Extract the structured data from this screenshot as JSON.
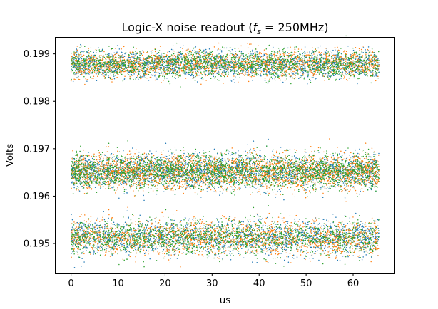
{
  "chart_data": {
    "type": "scatter",
    "title_main": "Logic-X noise readout (",
    "title_var": "f",
    "title_sub": "s",
    "title_rest": " = 250MHz)",
    "xlabel": "us",
    "ylabel": "Volts",
    "xlim": [
      -3.28,
      68.8
    ],
    "ylim": [
      0.19437,
      0.19934
    ],
    "xticks": [
      0,
      10,
      20,
      30,
      40,
      50,
      60
    ],
    "yticks": [
      0.195,
      0.196,
      0.197,
      0.198,
      0.199
    ],
    "ytick_labels": [
      "0.195",
      "0.196",
      "0.197",
      "0.198",
      "0.199"
    ],
    "grid": false,
    "marker": "point",
    "x_range": [
      0,
      65.5
    ],
    "levels": [
      {
        "center": 0.19512,
        "spread": 0.00018
      },
      {
        "center": 0.19652,
        "spread": 0.00018
      },
      {
        "center": 0.19878,
        "spread": 0.00014
      }
    ],
    "level_counts": [
      1800,
      2600,
      1900
    ],
    "series": [
      {
        "color": "#1f77b4"
      },
      {
        "color": "#ff7f0e"
      },
      {
        "color": "#2ca02c"
      }
    ]
  }
}
